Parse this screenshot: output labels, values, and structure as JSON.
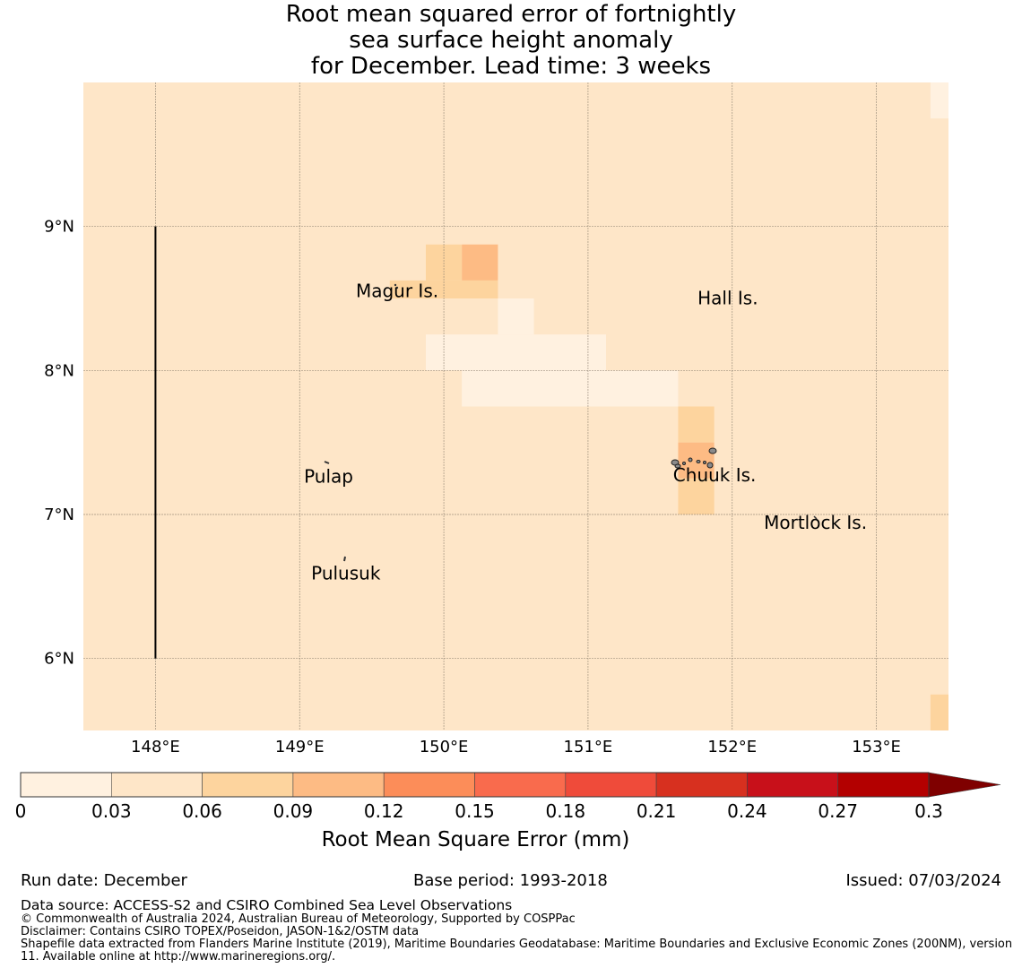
{
  "title": {
    "line1": "Root mean squared error of fortnightly",
    "line2": "sea surface height anomaly",
    "line3": "for December. Lead time: 3 weeks"
  },
  "map": {
    "lat_range": [
      5.5,
      10.0
    ],
    "lon_range": [
      147.5,
      153.5
    ],
    "lat_ticks": [
      {
        "v": 9,
        "label": "9°N"
      },
      {
        "v": 8,
        "label": "8°N"
      },
      {
        "v": 7,
        "label": "7°N"
      },
      {
        "v": 6,
        "label": "6°N"
      }
    ],
    "lon_ticks": [
      {
        "v": 148,
        "label": "148°E"
      },
      {
        "v": 149,
        "label": "149°E"
      },
      {
        "v": 150,
        "label": "150°E"
      },
      {
        "v": 151,
        "label": "151°E"
      },
      {
        "v": 152,
        "label": "152°E"
      },
      {
        "v": 153,
        "label": "153°E"
      }
    ],
    "background_value": 0.045,
    "cells": [
      {
        "lon0": 149.875,
        "lon1": 150.125,
        "lat0": 8.625,
        "lat1": 8.875,
        "value": 0.07
      },
      {
        "lon0": 150.125,
        "lon1": 150.375,
        "lat0": 8.625,
        "lat1": 8.875,
        "value": 0.1
      },
      {
        "lon0": 149.625,
        "lon1": 150.375,
        "lat0": 8.5,
        "lat1": 8.625,
        "value": 0.07
      },
      {
        "lon0": 150.375,
        "lon1": 150.625,
        "lat0": 8.25,
        "lat1": 8.5,
        "value": 0.02
      },
      {
        "lon0": 149.875,
        "lon1": 151.125,
        "lat0": 8.0,
        "lat1": 8.25,
        "value": 0.02
      },
      {
        "lon0": 150.125,
        "lon1": 151.625,
        "lat0": 7.75,
        "lat1": 8.0,
        "value": 0.02
      },
      {
        "lon0": 151.625,
        "lon1": 151.875,
        "lat0": 7.5,
        "lat1": 7.75,
        "value": 0.07
      },
      {
        "lon0": 151.625,
        "lon1": 151.875,
        "lat0": 7.25,
        "lat1": 7.5,
        "value": 0.1
      },
      {
        "lon0": 151.625,
        "lon1": 151.875,
        "lat0": 7.0,
        "lat1": 7.25,
        "value": 0.07
      },
      {
        "lon0": 153.375,
        "lon1": 153.5,
        "lat0": 9.75,
        "lat1": 10.0,
        "value": 0.02
      },
      {
        "lon0": 153.375,
        "lon1": 153.5,
        "lat0": 5.5,
        "lat1": 5.75,
        "value": 0.07
      }
    ],
    "boundary_line": {
      "lon": 148.0,
      "lat_from": 6.0,
      "lat_to": 9.0
    },
    "places": [
      {
        "name": "Magur Is.",
        "lon": 149.39,
        "lat": 8.51
      },
      {
        "name": "Hall Is.",
        "lon": 151.76,
        "lat": 8.46
      },
      {
        "name": "Pulap",
        "lon": 149.03,
        "lat": 7.22
      },
      {
        "name": "Chuuk Is.",
        "lon": 151.59,
        "lat": 7.23
      },
      {
        "name": "Mortlock Is.",
        "lon": 152.22,
        "lat": 6.9
      },
      {
        "name": "Pulusuk",
        "lon": 149.08,
        "lat": 6.55
      }
    ]
  },
  "colorbar": {
    "label": "Root Mean Square Error (mm)",
    "ticks": [
      "0",
      "0.03",
      "0.06",
      "0.09",
      "0.12",
      "0.15",
      "0.18",
      "0.21",
      "0.24",
      "0.27",
      "0.3"
    ],
    "bounds": [
      0,
      0.03,
      0.06,
      0.09,
      0.12,
      0.15,
      0.18,
      0.21,
      0.24,
      0.27,
      0.3
    ],
    "colors": [
      "#fff1e0",
      "#fee6c8",
      "#fdd49e",
      "#fdbb84",
      "#fc8d59",
      "#f96b4d",
      "#ef4b3a",
      "#d7301f",
      "#c8101a",
      "#b30000"
    ],
    "extend_color": "#7f0000"
  },
  "footer": {
    "run_date": "Run date: December",
    "base_period": "Base period: 1993-2018",
    "issued": "Issued: 07/03/2024",
    "data_source": "Data source: ACCESS-S2 and CSIRO Combined Sea Level Observations",
    "copyright": "© Commonwealth of Australia 2024, Australian Bureau of Meteorology, Supported by COSPPac",
    "disclaimer": "Disclaimer: Contains CSIRO TOPEX/Poseidon, JASON-1&2/OSTM data",
    "shapefile": "Shapefile data extracted from Flanders Marine Institute (2019), Maritime Boundaries Geodatabase: Maritime Boundaries and Exclusive Economic Zones (200NM), version 11. Available online at http://www.marineregions.org/."
  }
}
